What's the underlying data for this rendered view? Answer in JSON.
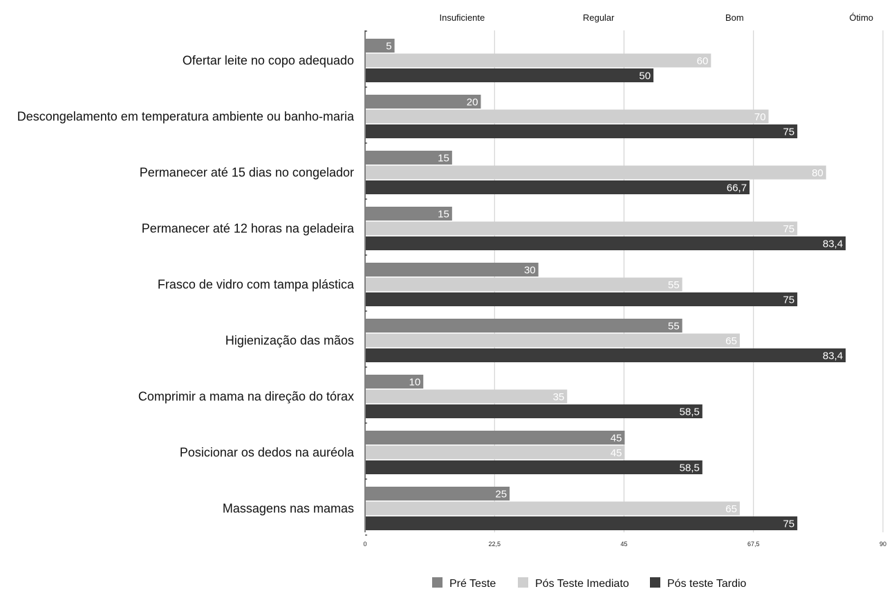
{
  "chart_data": {
    "type": "bar",
    "orientation": "horizontal",
    "title": "",
    "categories": [
      "Ofertar leite no copo adequado",
      "Descongelamento em temperatura ambiente ou banho-maria",
      "Permanecer até 15 dias no congelador",
      "Permanecer até 12 horas na geladeira",
      "Frasco de vidro com tampa plástica",
      "Higienização das mãos",
      "Comprimir a mama na direção do tórax",
      "Posicionar os dedos na auréola",
      "Massagens nas mamas"
    ],
    "series": [
      {
        "name": "Pré Teste",
        "color": "#838383",
        "values": [
          5,
          20,
          15,
          15,
          30,
          55,
          10,
          45,
          25
        ],
        "labels": [
          "5",
          "20",
          "15",
          "15",
          "30",
          "55",
          "10",
          "45",
          "25"
        ]
      },
      {
        "name": "Pós Teste Imediato",
        "color": "#cfcfcf",
        "values": [
          60,
          70,
          80,
          75,
          55,
          65,
          35,
          45,
          65
        ],
        "labels": [
          "60",
          "70",
          "80",
          "75",
          "55",
          "65",
          "35",
          "45",
          "65"
        ]
      },
      {
        "name": "Pós teste Tardio",
        "color": "#3b3b3b",
        "values": [
          50,
          75,
          66.7,
          83.4,
          75,
          83.4,
          58.5,
          58.5,
          75
        ],
        "labels": [
          "50",
          "75",
          "66,7",
          "83,4",
          "75",
          "83,4",
          "58,5",
          "58,5",
          "75"
        ]
      }
    ],
    "xlim": [
      0,
      90
    ],
    "x_ticks": [
      0,
      22.5,
      45,
      67.5,
      90
    ],
    "x_tick_labels": [
      "0",
      "22,5",
      "45",
      "67,5",
      "90"
    ],
    "bands": [
      {
        "label": "Insuficiente",
        "x": 22.5
      },
      {
        "label": "Regular",
        "x": 45
      },
      {
        "label": "Bom",
        "x": 67.5
      },
      {
        "label": "Ótimo",
        "x": 90
      }
    ],
    "grid": true,
    "legend_position": "bottom-center"
  }
}
